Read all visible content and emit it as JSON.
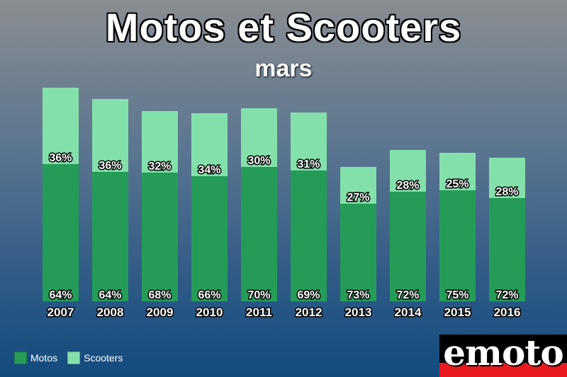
{
  "header": {
    "title": "Motos et Scooters",
    "subtitle": "mars"
  },
  "colors": {
    "motos": "#249c58",
    "scooters": "#84e0ab"
  },
  "legend": {
    "motos": "Motos",
    "scooters": "Scooters"
  },
  "logo": {
    "text": "emoto"
  },
  "chart_data": {
    "type": "bar",
    "stacked": true,
    "title": "Motos et Scooters",
    "subtitle": "mars",
    "categories": [
      "2007",
      "2008",
      "2009",
      "2010",
      "2011",
      "2012",
      "2013",
      "2014",
      "2015",
      "2016"
    ],
    "series": [
      {
        "name": "Motos",
        "values": [
          194,
          183,
          182,
          177,
          190,
          185,
          138,
          155,
          157,
          146
        ],
        "labels": [
          "64%",
          "64%",
          "68%",
          "66%",
          "70%",
          "69%",
          "73%",
          "72%",
          "75%",
          "72%"
        ]
      },
      {
        "name": "Scooters",
        "values": [
          108,
          103,
          87,
          89,
          83,
          82,
          52,
          59,
          53,
          57
        ],
        "labels": [
          "36%",
          "36%",
          "32%",
          "34%",
          "30%",
          "31%",
          "27%",
          "28%",
          "25%",
          "28%"
        ]
      }
    ],
    "ylim": [
      0,
      305
    ],
    "grid": false,
    "legend_position": "bottom-left"
  }
}
